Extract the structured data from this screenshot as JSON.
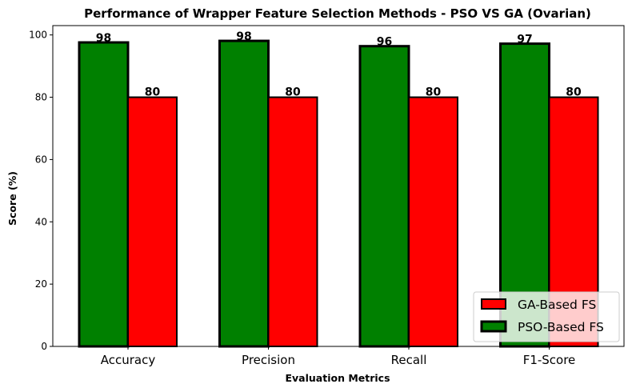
{
  "chart_data": {
    "type": "bar",
    "title": "Performance of Wrapper Feature Selection Methods - PSO VS GA (Ovarian)",
    "xlabel": "Evaluation Metrics",
    "ylabel": "Score (%)",
    "categories": [
      "Accuracy",
      "Precision",
      "Recall",
      "F1-Score"
    ],
    "series": [
      {
        "name": "PSO-Based FS",
        "values": [
          97.6,
          98.1,
          96.4,
          97.2
        ],
        "labels": [
          "98",
          "98",
          "96",
          "97"
        ],
        "color": "#008000"
      },
      {
        "name": "GA-Based FS",
        "values": [
          80,
          80,
          80,
          80
        ],
        "labels": [
          "80",
          "80",
          "80",
          "80"
        ],
        "color": "#ff0000"
      }
    ],
    "ylim": [
      0,
      103
    ],
    "yticks": [
      0,
      20,
      40,
      60,
      80,
      100
    ],
    "legend_order": [
      "GA-Based FS",
      "PSO-Based FS"
    ],
    "legend_position": "lower-right",
    "grid": false
  }
}
